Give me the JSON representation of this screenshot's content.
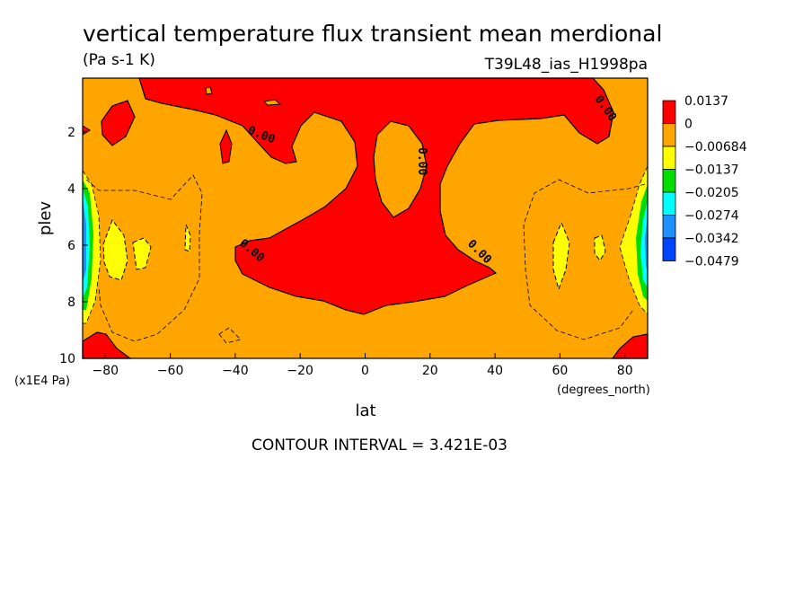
{
  "chart_data": {
    "type": "contour",
    "title": "vertical temperature flux transient mean merdional",
    "units": "(Pa s-1 K)",
    "dataset": "T39L48_ias_H1998pa",
    "xlabel": "lat",
    "x_unit": "(degrees_north)",
    "ylabel": "plev",
    "y_unit": "(x1E4 Pa)",
    "xlim": [
      -87,
      87
    ],
    "ylim": [
      10,
      0.1
    ],
    "x_ticks": [
      -80,
      -60,
      -40,
      -20,
      0,
      20,
      40,
      60,
      80
    ],
    "y_ticks": [
      2,
      4,
      6,
      8,
      10
    ],
    "contour_interval_text": "CONTOUR INTERVAL = 3.421E-03",
    "contour_line_label": "0.00",
    "legend": {
      "levels": [
        "0.0137",
        "0",
        "−0.00684",
        "−0.0137",
        "−0.0205",
        "−0.0274",
        "−0.0342",
        "−0.0479"
      ],
      "colors": [
        "#ff0000",
        "#ffa500",
        "#ffff00",
        "#00dd00",
        "#00ffff",
        "#1e90ff",
        "#0044ff"
      ]
    }
  }
}
